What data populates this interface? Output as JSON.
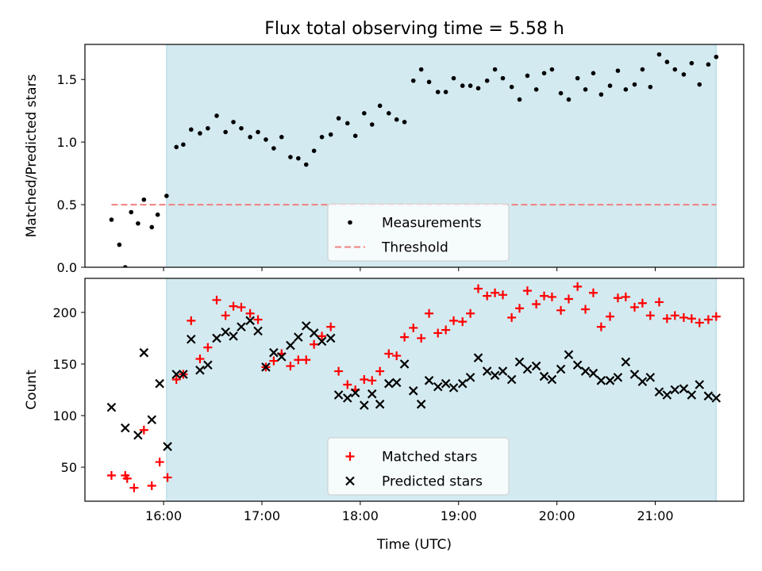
{
  "figure": {
    "title": "Flux total observing time = 5.58 h",
    "xlabel": "Time (UTC)",
    "xticks": [
      {
        "value": 16,
        "label": "16:00"
      },
      {
        "value": 17,
        "label": "17:00"
      },
      {
        "value": 18,
        "label": "18:00"
      },
      {
        "value": 19,
        "label": "19:00"
      },
      {
        "value": 20,
        "label": "20:00"
      },
      {
        "value": 21,
        "label": "21:00"
      }
    ],
    "xlim": [
      15.2,
      21.9
    ],
    "observing_window": [
      16.03,
      21.62
    ],
    "colors": {
      "shade": "#d3eaf0",
      "shade_edge": "#a8d4e0",
      "measurement": "#000000",
      "threshold": "#f08080",
      "matched": "#ff0000",
      "predicted": "#000000"
    }
  },
  "chart_data": [
    {
      "type": "scatter",
      "ylabel": "Matched/Predicted stars",
      "ylim": [
        0,
        1.78
      ],
      "yticks": [
        {
          "value": 0.0,
          "label": "0.0"
        },
        {
          "value": 0.5,
          "label": "0.5"
        },
        {
          "value": 1.0,
          "label": "1.0"
        },
        {
          "value": 1.5,
          "label": "1.5"
        }
      ],
      "legend_position": "lower-center",
      "threshold": {
        "name": "Threshold",
        "value": 0.5,
        "x_range": [
          15.47,
          21.62
        ]
      },
      "series": [
        {
          "name": "Measurements",
          "x": [
            15.47,
            15.55,
            15.61,
            15.67,
            15.74,
            15.8,
            15.88,
            15.94,
            16.03,
            16.13,
            16.2,
            16.28,
            16.37,
            16.45,
            16.54,
            16.63,
            16.71,
            16.79,
            16.88,
            16.96,
            17.04,
            17.12,
            17.2,
            17.29,
            17.37,
            17.45,
            17.53,
            17.61,
            17.7,
            17.78,
            17.87,
            17.95,
            18.04,
            18.12,
            18.2,
            18.29,
            18.37,
            18.45,
            18.54,
            18.62,
            18.7,
            18.79,
            18.87,
            18.95,
            19.04,
            19.12,
            19.2,
            19.29,
            19.37,
            19.45,
            19.54,
            19.62,
            19.7,
            19.79,
            19.87,
            19.95,
            20.04,
            20.12,
            20.21,
            20.29,
            20.37,
            20.45,
            20.54,
            20.62,
            20.7,
            20.79,
            20.87,
            20.95,
            21.04,
            21.12,
            21.2,
            21.29,
            21.37,
            21.45,
            21.54,
            21.62
          ],
          "y": [
            0.38,
            0.18,
            0.0,
            0.44,
            0.35,
            0.54,
            0.32,
            0.42,
            0.57,
            0.96,
            0.98,
            1.1,
            1.07,
            1.11,
            1.21,
            1.08,
            1.16,
            1.11,
            1.04,
            1.08,
            1.02,
            0.95,
            1.04,
            0.88,
            0.87,
            0.82,
            0.93,
            1.04,
            1.06,
            1.19,
            1.15,
            1.05,
            1.23,
            1.14,
            1.29,
            1.23,
            1.18,
            1.16,
            1.49,
            1.58,
            1.48,
            1.4,
            1.4,
            1.51,
            1.45,
            1.45,
            1.43,
            1.49,
            1.58,
            1.51,
            1.44,
            1.34,
            1.53,
            1.42,
            1.55,
            1.58,
            1.39,
            1.34,
            1.51,
            1.42,
            1.55,
            1.38,
            1.45,
            1.57,
            1.42,
            1.46,
            1.58,
            1.44,
            1.7,
            1.64,
            1.58,
            1.54,
            1.63,
            1.46,
            1.62,
            1.68
          ]
        }
      ]
    },
    {
      "type": "scatter",
      "ylabel": "Count",
      "ylim": [
        17,
        233
      ],
      "yticks": [
        {
          "value": 50,
          "label": "50"
        },
        {
          "value": 100,
          "label": "100"
        },
        {
          "value": 150,
          "label": "150"
        },
        {
          "value": 200,
          "label": "200"
        }
      ],
      "legend_position": "lower-center",
      "series": [
        {
          "name": "Matched stars",
          "marker": "+",
          "x": [
            15.47,
            15.61,
            15.63,
            15.7,
            15.8,
            15.88,
            15.96,
            16.04,
            16.13,
            16.2,
            16.28,
            16.37,
            16.45,
            16.54,
            16.63,
            16.71,
            16.79,
            16.88,
            16.96,
            17.04,
            17.12,
            17.2,
            17.29,
            17.37,
            17.45,
            17.53,
            17.61,
            17.7,
            17.78,
            17.87,
            17.95,
            18.04,
            18.12,
            18.2,
            18.29,
            18.37,
            18.45,
            18.54,
            18.62,
            18.7,
            18.79,
            18.87,
            18.95,
            19.04,
            19.12,
            19.2,
            19.29,
            19.37,
            19.45,
            19.54,
            19.62,
            19.7,
            19.79,
            19.87,
            19.95,
            20.04,
            20.12,
            20.21,
            20.29,
            20.37,
            20.45,
            20.54,
            20.62,
            20.7,
            20.79,
            20.87,
            20.95,
            21.04,
            21.12,
            21.2,
            21.29,
            21.37,
            21.45,
            21.54,
            21.62
          ],
          "y": [
            42,
            42,
            39,
            30,
            86,
            32,
            55,
            40,
            135,
            140,
            192,
            155,
            166,
            212,
            197,
            206,
            205,
            199,
            193,
            147,
            153,
            160,
            148,
            154,
            154,
            169,
            177,
            186,
            143,
            130,
            125,
            135,
            134,
            143,
            160,
            158,
            176,
            185,
            175,
            199,
            180,
            183,
            192,
            191,
            199,
            223,
            216,
            219,
            217,
            195,
            204,
            221,
            208,
            216,
            215,
            202,
            213,
            225,
            203,
            219,
            186,
            196,
            214,
            215,
            205,
            209,
            197,
            210,
            194,
            197,
            195,
            194,
            190,
            193,
            196
          ]
        },
        {
          "name": "Predicted stars",
          "marker": "x",
          "x": [
            15.47,
            15.61,
            15.74,
            15.8,
            15.88,
            15.96,
            16.04,
            16.13,
            16.2,
            16.28,
            16.37,
            16.45,
            16.54,
            16.63,
            16.71,
            16.79,
            16.88,
            16.96,
            17.04,
            17.12,
            17.2,
            17.29,
            17.37,
            17.45,
            17.53,
            17.61,
            17.7,
            17.78,
            17.87,
            17.95,
            18.04,
            18.12,
            18.2,
            18.29,
            18.37,
            18.45,
            18.54,
            18.62,
            18.7,
            18.79,
            18.87,
            18.95,
            19.04,
            19.12,
            19.2,
            19.29,
            19.37,
            19.45,
            19.54,
            19.62,
            19.7,
            19.79,
            19.87,
            19.95,
            20.04,
            20.12,
            20.21,
            20.29,
            20.37,
            20.45,
            20.54,
            20.62,
            20.7,
            20.79,
            20.87,
            20.95,
            21.04,
            21.12,
            21.2,
            21.29,
            21.37,
            21.45,
            21.54,
            21.62
          ],
          "y": [
            108,
            88,
            81,
            161,
            96,
            131,
            70,
            140,
            140,
            174,
            144,
            149,
            175,
            181,
            177,
            186,
            192,
            182,
            147,
            161,
            157,
            168,
            176,
            187,
            180,
            172,
            175,
            120,
            117,
            122,
            110,
            121,
            111,
            131,
            132,
            150,
            124,
            111,
            134,
            128,
            131,
            127,
            131,
            137,
            156,
            143,
            139,
            143,
            135,
            152,
            145,
            148,
            138,
            135,
            145,
            159,
            149,
            143,
            141,
            134,
            134,
            137,
            152,
            140,
            133,
            137,
            123,
            120,
            125,
            126,
            120,
            130,
            119,
            117
          ]
        }
      ]
    }
  ]
}
